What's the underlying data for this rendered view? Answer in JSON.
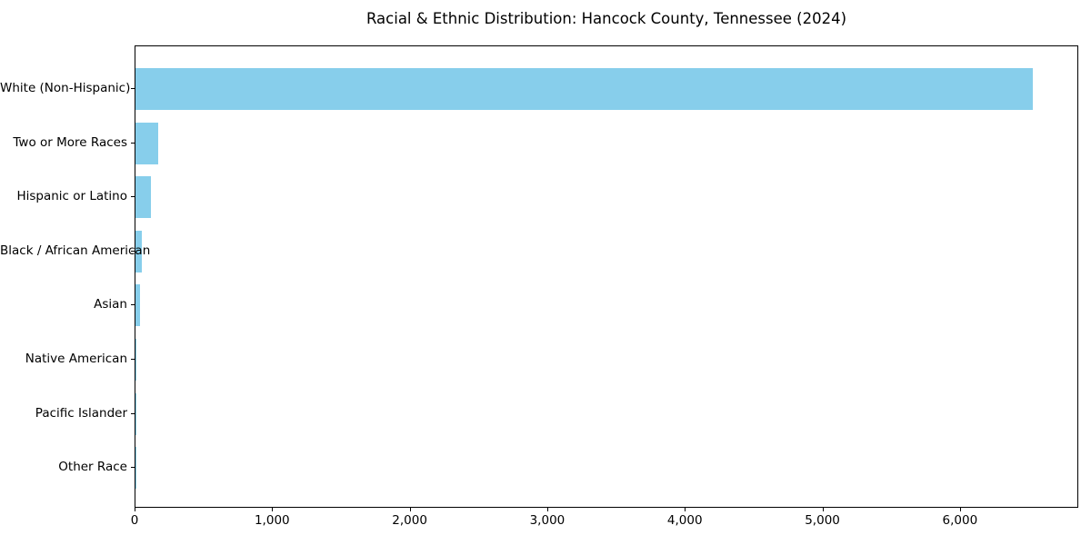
{
  "chart_data": {
    "type": "bar",
    "orientation": "horizontal",
    "title": "Racial & Ethnic Distribution: Hancock County, Tennessee (2024)",
    "categories": [
      "White (Non-Hispanic)",
      "Two or More Races",
      "Hispanic or Latino",
      "Black / African American",
      "Asian",
      "Native American",
      "Pacific Islander",
      "Other Race"
    ],
    "values": [
      6520,
      165,
      110,
      45,
      30,
      4,
      2,
      2
    ],
    "xlabel": "",
    "ylabel": "",
    "xlim": [
      0,
      6860
    ],
    "xticks": [
      0,
      1000,
      2000,
      3000,
      4000,
      5000,
      6000
    ],
    "xtick_labels": [
      "0",
      "1,000",
      "2,000",
      "3,000",
      "4,000",
      "5,000",
      "6,000"
    ],
    "bar_color": "#87CEEB",
    "frame_color": "#000000",
    "background": "#FFFFFF",
    "grid": false,
    "legend": null
  }
}
